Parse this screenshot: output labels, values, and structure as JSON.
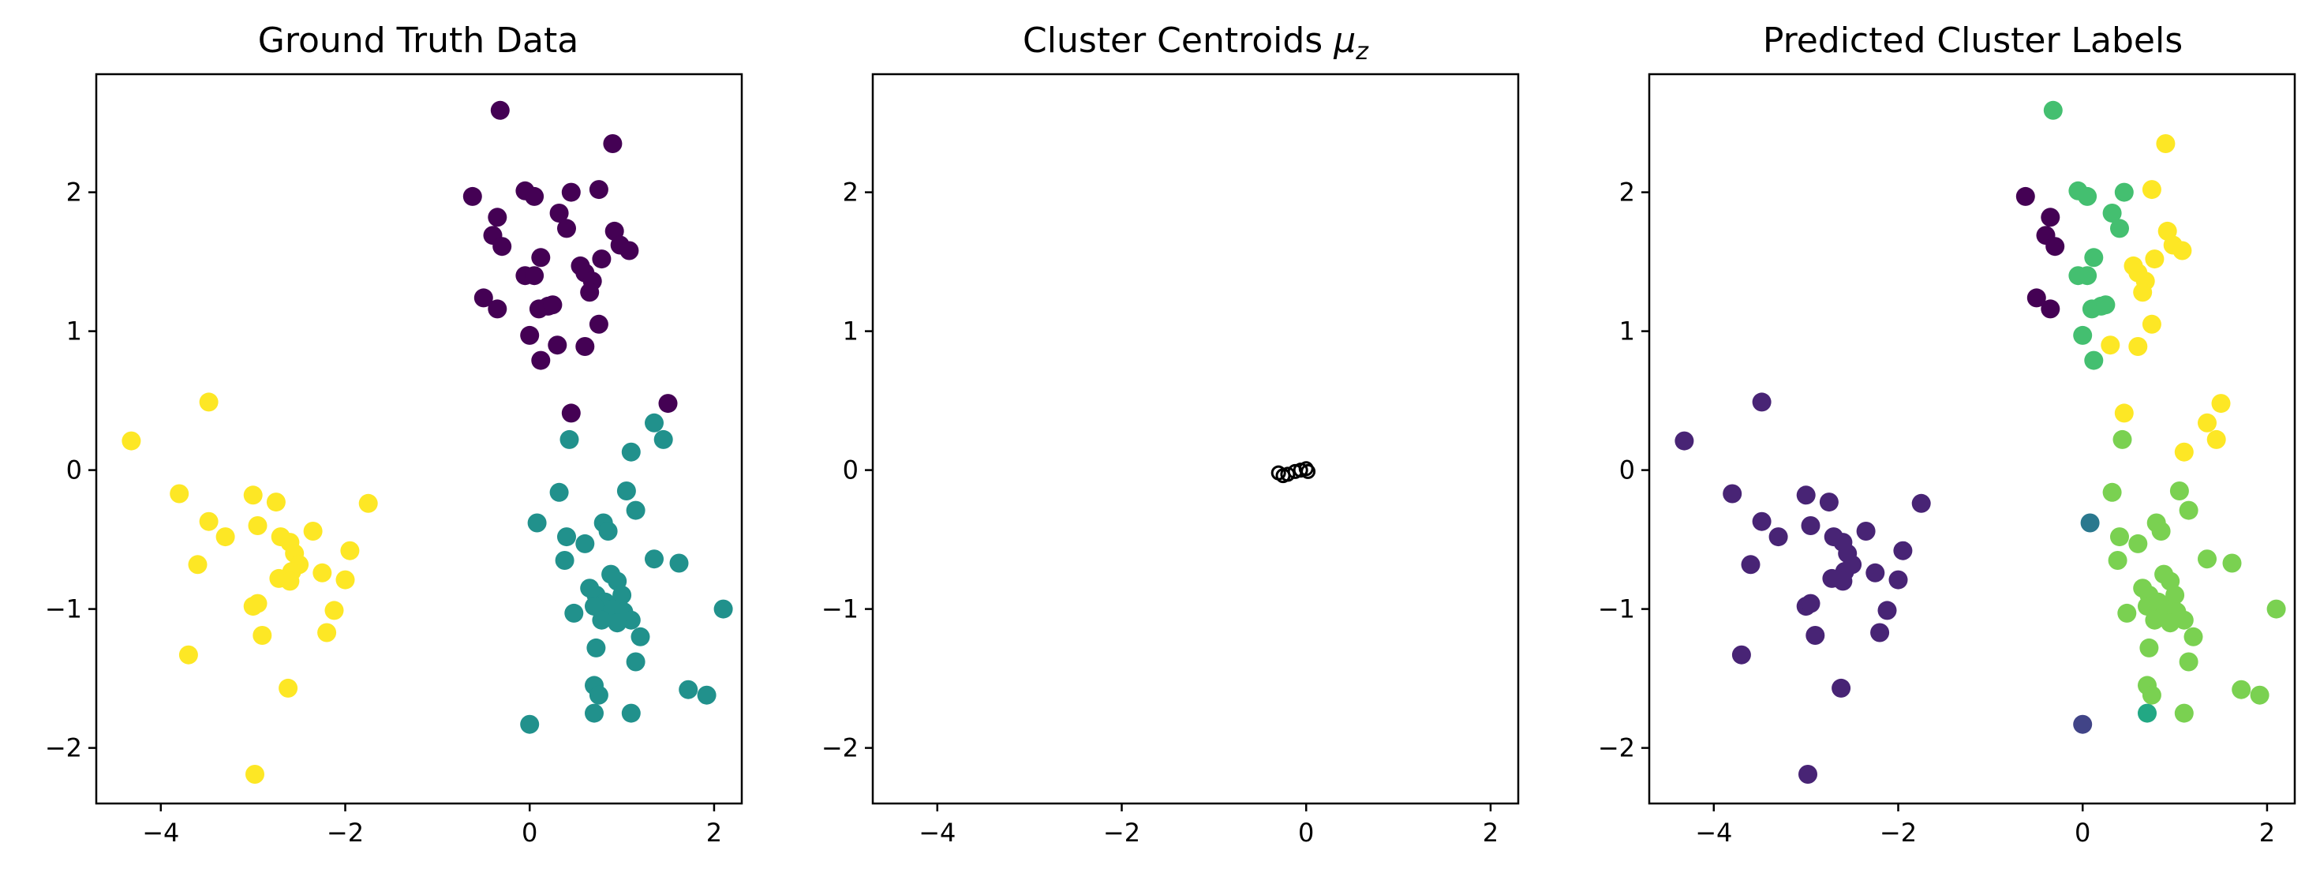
{
  "chart_data": [
    {
      "type": "scatter",
      "title": "Ground Truth Data",
      "xlim": [
        -4.7,
        2.3
      ],
      "ylim": [
        -2.4,
        2.85
      ],
      "xticks": [
        -4,
        -2,
        0,
        2
      ],
      "yticks": [
        -2,
        -1,
        0,
        1,
        2
      ],
      "xtick_labels": [
        "−4",
        "−2",
        "0",
        "2"
      ],
      "ytick_labels": [
        "−2",
        "−1",
        "0",
        "1",
        "2"
      ],
      "grid": false,
      "series": [
        {
          "color": "#440154",
          "points": [
            [
              -0.32,
              2.59
            ],
            [
              0.9,
              2.35
            ],
            [
              -0.62,
              1.97
            ],
            [
              -0.05,
              2.01
            ],
            [
              0.05,
              1.97
            ],
            [
              0.45,
              2.0
            ],
            [
              0.75,
              2.02
            ],
            [
              -0.35,
              1.82
            ],
            [
              0.32,
              1.85
            ],
            [
              -0.4,
              1.69
            ],
            [
              -0.3,
              1.61
            ],
            [
              0.4,
              1.74
            ],
            [
              0.92,
              1.72
            ],
            [
              0.98,
              1.62
            ],
            [
              1.08,
              1.58
            ],
            [
              0.78,
              1.52
            ],
            [
              0.12,
              1.53
            ],
            [
              0.55,
              1.47
            ],
            [
              0.6,
              1.42
            ],
            [
              0.68,
              1.36
            ],
            [
              -0.05,
              1.4
            ],
            [
              0.05,
              1.4
            ],
            [
              0.65,
              1.28
            ],
            [
              -0.5,
              1.24
            ],
            [
              -0.35,
              1.16
            ],
            [
              0.1,
              1.16
            ],
            [
              0.2,
              1.18
            ],
            [
              0.25,
              1.19
            ],
            [
              0.75,
              1.05
            ],
            [
              0.0,
              0.97
            ],
            [
              0.3,
              0.9
            ],
            [
              0.6,
              0.89
            ],
            [
              0.12,
              0.79
            ],
            [
              0.45,
              0.41
            ],
            [
              1.5,
              0.48
            ]
          ]
        },
        {
          "color": "#21918c",
          "points": [
            [
              1.35,
              0.34
            ],
            [
              1.45,
              0.22
            ],
            [
              0.43,
              0.22
            ],
            [
              1.1,
              0.13
            ],
            [
              1.05,
              -0.15
            ],
            [
              0.32,
              -0.16
            ],
            [
              1.15,
              -0.29
            ],
            [
              0.08,
              -0.38
            ],
            [
              0.8,
              -0.38
            ],
            [
              0.85,
              -0.44
            ],
            [
              0.4,
              -0.48
            ],
            [
              0.6,
              -0.53
            ],
            [
              1.35,
              -0.64
            ],
            [
              0.38,
              -0.65
            ],
            [
              1.62,
              -0.67
            ],
            [
              0.88,
              -0.75
            ],
            [
              0.95,
              -0.8
            ],
            [
              0.65,
              -0.85
            ],
            [
              0.72,
              -0.9
            ],
            [
              1.0,
              -0.9
            ],
            [
              0.82,
              -0.95
            ],
            [
              0.7,
              -0.98
            ],
            [
              0.9,
              -1.0
            ],
            [
              1.02,
              -1.02
            ],
            [
              2.1,
              -1.0
            ],
            [
              0.48,
              -1.03
            ],
            [
              1.1,
              -1.08
            ],
            [
              0.78,
              -1.08
            ],
            [
              0.95,
              -1.1
            ],
            [
              1.2,
              -1.2
            ],
            [
              0.72,
              -1.28
            ],
            [
              1.15,
              -1.38
            ],
            [
              0.7,
              -1.55
            ],
            [
              1.72,
              -1.58
            ],
            [
              0.75,
              -1.62
            ],
            [
              1.92,
              -1.62
            ],
            [
              0.7,
              -1.75
            ],
            [
              1.1,
              -1.75
            ],
            [
              0.0,
              -1.83
            ]
          ]
        },
        {
          "color": "#fde725",
          "points": [
            [
              -3.48,
              0.49
            ],
            [
              -4.32,
              0.21
            ],
            [
              -3.8,
              -0.17
            ],
            [
              -3.0,
              -0.18
            ],
            [
              -2.75,
              -0.23
            ],
            [
              -1.75,
              -0.24
            ],
            [
              -3.48,
              -0.37
            ],
            [
              -2.95,
              -0.4
            ],
            [
              -2.35,
              -0.44
            ],
            [
              -3.3,
              -0.48
            ],
            [
              -2.7,
              -0.48
            ],
            [
              -2.6,
              -0.52
            ],
            [
              -2.55,
              -0.6
            ],
            [
              -1.95,
              -0.58
            ],
            [
              -3.6,
              -0.68
            ],
            [
              -2.5,
              -0.68
            ],
            [
              -2.58,
              -0.73
            ],
            [
              -2.25,
              -0.74
            ],
            [
              -2.72,
              -0.78
            ],
            [
              -2.6,
              -0.8
            ],
            [
              -2.0,
              -0.79
            ],
            [
              -3.0,
              -0.98
            ],
            [
              -2.95,
              -0.96
            ],
            [
              -2.12,
              -1.01
            ],
            [
              -2.2,
              -1.17
            ],
            [
              -2.9,
              -1.19
            ],
            [
              -3.7,
              -1.33
            ],
            [
              -2.62,
              -1.57
            ],
            [
              -2.98,
              -2.19
            ]
          ]
        }
      ]
    },
    {
      "type": "scatter",
      "title": "Cluster Centroids μ_z",
      "title_main": "Cluster Centroids ",
      "title_math": "μ",
      "title_sub": "z",
      "xlim": [
        -4.7,
        2.3
      ],
      "ylim": [
        -2.4,
        2.85
      ],
      "xticks": [
        -4,
        -2,
        0,
        2
      ],
      "yticks": [
        -2,
        -1,
        0,
        1,
        2
      ],
      "xtick_labels": [
        "−4",
        "−2",
        "0",
        "2"
      ],
      "ytick_labels": [
        "−2",
        "−1",
        "0",
        "1",
        "2"
      ],
      "grid": false,
      "marker": "open-circle",
      "series": [
        {
          "color": "#000000",
          "points": [
            [
              -0.3,
              -0.02
            ],
            [
              -0.25,
              -0.04
            ],
            [
              -0.2,
              -0.03
            ],
            [
              -0.12,
              -0.01
            ],
            [
              -0.06,
              0.0
            ],
            [
              0.0,
              0.01
            ],
            [
              0.02,
              -0.01
            ]
          ]
        }
      ]
    },
    {
      "type": "scatter",
      "title": "Predicted Cluster Labels",
      "xlim": [
        -4.7,
        2.3
      ],
      "ylim": [
        -2.4,
        2.85
      ],
      "xticks": [
        -4,
        -2,
        0,
        2
      ],
      "yticks": [
        -2,
        -1,
        0,
        1,
        2
      ],
      "xtick_labels": [
        "−4",
        "−2",
        "0",
        "2"
      ],
      "ytick_labels": [
        "−2",
        "−1",
        "0",
        "1",
        "2"
      ],
      "grid": false,
      "series": [
        {
          "color": "#440154",
          "points": [
            [
              -0.62,
              1.97
            ],
            [
              -0.35,
              1.82
            ],
            [
              -0.4,
              1.69
            ],
            [
              -0.3,
              1.61
            ],
            [
              -0.5,
              1.24
            ],
            [
              -0.35,
              1.16
            ]
          ]
        },
        {
          "color": "#482475",
          "points": [
            [
              -3.48,
              0.49
            ],
            [
              -4.32,
              0.21
            ],
            [
              -3.8,
              -0.17
            ],
            [
              -3.0,
              -0.18
            ],
            [
              -2.75,
              -0.23
            ],
            [
              -1.75,
              -0.24
            ],
            [
              -3.48,
              -0.37
            ],
            [
              -2.95,
              -0.4
            ],
            [
              -2.35,
              -0.44
            ],
            [
              -3.3,
              -0.48
            ],
            [
              -2.7,
              -0.48
            ],
            [
              -2.6,
              -0.52
            ],
            [
              -2.55,
              -0.6
            ],
            [
              -1.95,
              -0.58
            ],
            [
              -3.6,
              -0.68
            ],
            [
              -2.5,
              -0.68
            ],
            [
              -2.58,
              -0.73
            ],
            [
              -2.25,
              -0.74
            ],
            [
              -2.72,
              -0.78
            ],
            [
              -2.6,
              -0.8
            ],
            [
              -2.0,
              -0.79
            ],
            [
              -3.0,
              -0.98
            ],
            [
              -2.95,
              -0.96
            ],
            [
              -2.12,
              -1.01
            ],
            [
              -2.2,
              -1.17
            ],
            [
              -2.9,
              -1.19
            ],
            [
              -3.7,
              -1.33
            ],
            [
              -2.62,
              -1.57
            ],
            [
              -2.98,
              -2.19
            ]
          ]
        },
        {
          "color": "#414487",
          "points": [
            [
              0.0,
              -1.83
            ]
          ]
        },
        {
          "color": "#2a788e",
          "points": [
            [
              0.08,
              -0.38
            ]
          ]
        },
        {
          "color": "#22a884",
          "points": [
            [
              0.7,
              -1.75
            ]
          ]
        },
        {
          "color": "#44bf70",
          "points": [
            [
              -0.32,
              2.59
            ],
            [
              -0.05,
              2.01
            ],
            [
              0.05,
              1.97
            ],
            [
              0.45,
              2.0
            ],
            [
              0.32,
              1.85
            ],
            [
              0.4,
              1.74
            ],
            [
              0.12,
              1.53
            ],
            [
              -0.05,
              1.4
            ],
            [
              0.05,
              1.4
            ],
            [
              0.1,
              1.16
            ],
            [
              0.2,
              1.18
            ],
            [
              0.25,
              1.19
            ],
            [
              0.0,
              0.97
            ],
            [
              0.12,
              0.79
            ]
          ]
        },
        {
          "color": "#7ad151",
          "points": [
            [
              0.43,
              0.22
            ],
            [
              1.05,
              -0.15
            ],
            [
              0.32,
              -0.16
            ],
            [
              1.15,
              -0.29
            ],
            [
              0.8,
              -0.38
            ],
            [
              0.85,
              -0.44
            ],
            [
              0.4,
              -0.48
            ],
            [
              0.6,
              -0.53
            ],
            [
              1.35,
              -0.64
            ],
            [
              0.38,
              -0.65
            ],
            [
              1.62,
              -0.67
            ],
            [
              0.88,
              -0.75
            ],
            [
              0.95,
              -0.8
            ],
            [
              0.65,
              -0.85
            ],
            [
              0.72,
              -0.9
            ],
            [
              1.0,
              -0.9
            ],
            [
              0.82,
              -0.95
            ],
            [
              0.7,
              -0.98
            ],
            [
              0.9,
              -1.0
            ],
            [
              1.02,
              -1.02
            ],
            [
              2.1,
              -1.0
            ],
            [
              0.48,
              -1.03
            ],
            [
              1.1,
              -1.08
            ],
            [
              0.78,
              -1.08
            ],
            [
              0.95,
              -1.1
            ],
            [
              1.2,
              -1.2
            ],
            [
              0.72,
              -1.28
            ],
            [
              1.15,
              -1.38
            ],
            [
              0.7,
              -1.55
            ],
            [
              1.72,
              -1.58
            ],
            [
              0.75,
              -1.62
            ],
            [
              1.92,
              -1.62
            ],
            [
              1.1,
              -1.75
            ]
          ]
        },
        {
          "color": "#fde725",
          "points": [
            [
              0.9,
              2.35
            ],
            [
              0.75,
              2.02
            ],
            [
              0.92,
              1.72
            ],
            [
              0.98,
              1.62
            ],
            [
              1.08,
              1.58
            ],
            [
              0.78,
              1.52
            ],
            [
              0.55,
              1.47
            ],
            [
              0.6,
              1.42
            ],
            [
              0.68,
              1.36
            ],
            [
              0.65,
              1.28
            ],
            [
              0.75,
              1.05
            ],
            [
              0.3,
              0.9
            ],
            [
              0.6,
              0.89
            ],
            [
              0.45,
              0.41
            ],
            [
              1.5,
              0.48
            ],
            [
              1.35,
              0.34
            ],
            [
              1.45,
              0.22
            ],
            [
              1.1,
              0.13
            ]
          ]
        }
      ]
    }
  ]
}
